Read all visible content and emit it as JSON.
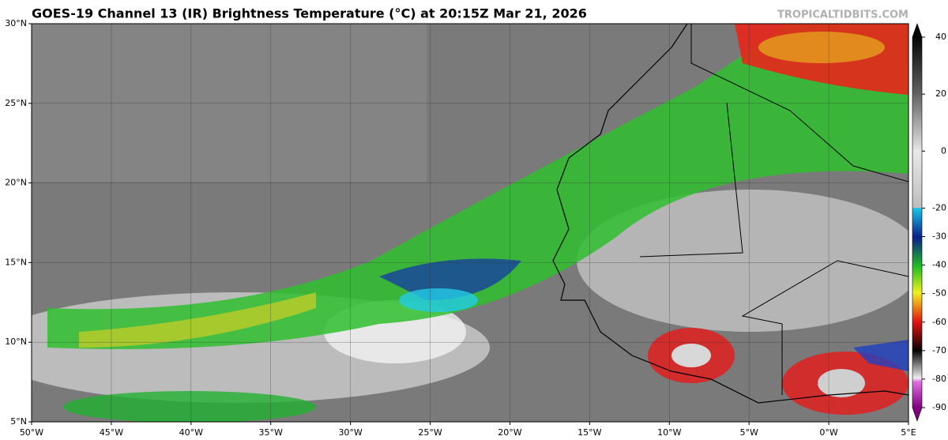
{
  "header": {
    "title": "GOES-19 Channel 13 (IR) Brightness Temperature (°C) at 20:15Z Mar 21, 2026",
    "brand": "TROPICALTIDBITS.COM"
  },
  "map": {
    "lat_labels": [
      "30°N",
      "25°N",
      "20°N",
      "15°N",
      "10°N",
      "5°N"
    ],
    "lon_labels": [
      "50°W",
      "45°W",
      "40°W",
      "35°W",
      "30°W",
      "25°W",
      "20°W",
      "15°W",
      "10°W",
      "5°W",
      "0°W",
      "5°E"
    ]
  },
  "colorbar": {
    "ticks": [
      40,
      20,
      0,
      -20,
      -30,
      -40,
      -50,
      -60,
      -70,
      -80,
      -90
    ]
  }
}
